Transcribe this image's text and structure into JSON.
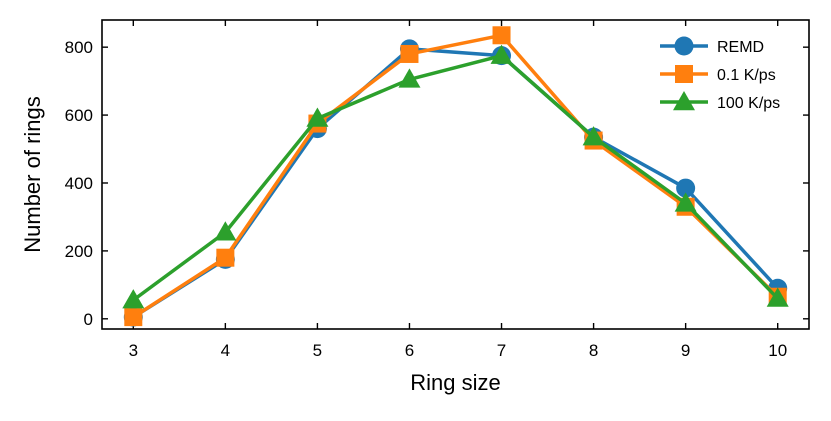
{
  "chart_data": {
    "type": "line",
    "title": "",
    "xlabel": "Ring size",
    "ylabel": "Number of rings",
    "xlim": [
      2.66,
      10.34
    ],
    "ylim": [
      -30,
      880
    ],
    "x": [
      3,
      4,
      5,
      6,
      7,
      8,
      9,
      10
    ],
    "x_ticks": [
      "3",
      "4",
      "5",
      "6",
      "7",
      "8",
      "9",
      "10"
    ],
    "y_ticks": [
      "0",
      "200",
      "400",
      "600",
      "800"
    ],
    "grid": false,
    "legend_position": "top-right",
    "series": [
      {
        "name": "REMD",
        "color": "#1f77b4",
        "marker": "circle",
        "values": [
          5,
          175,
          560,
          795,
          775,
          535,
          385,
          90
        ]
      },
      {
        "name": "0.1 K/ps",
        "color": "#ff7f0e",
        "marker": "square",
        "values": [
          5,
          180,
          575,
          780,
          835,
          525,
          330,
          65
        ]
      },
      {
        "name": "100 K/ps",
        "color": "#2ca02c",
        "marker": "triangle",
        "values": [
          55,
          255,
          590,
          705,
          775,
          535,
          340,
          60
        ]
      }
    ]
  }
}
